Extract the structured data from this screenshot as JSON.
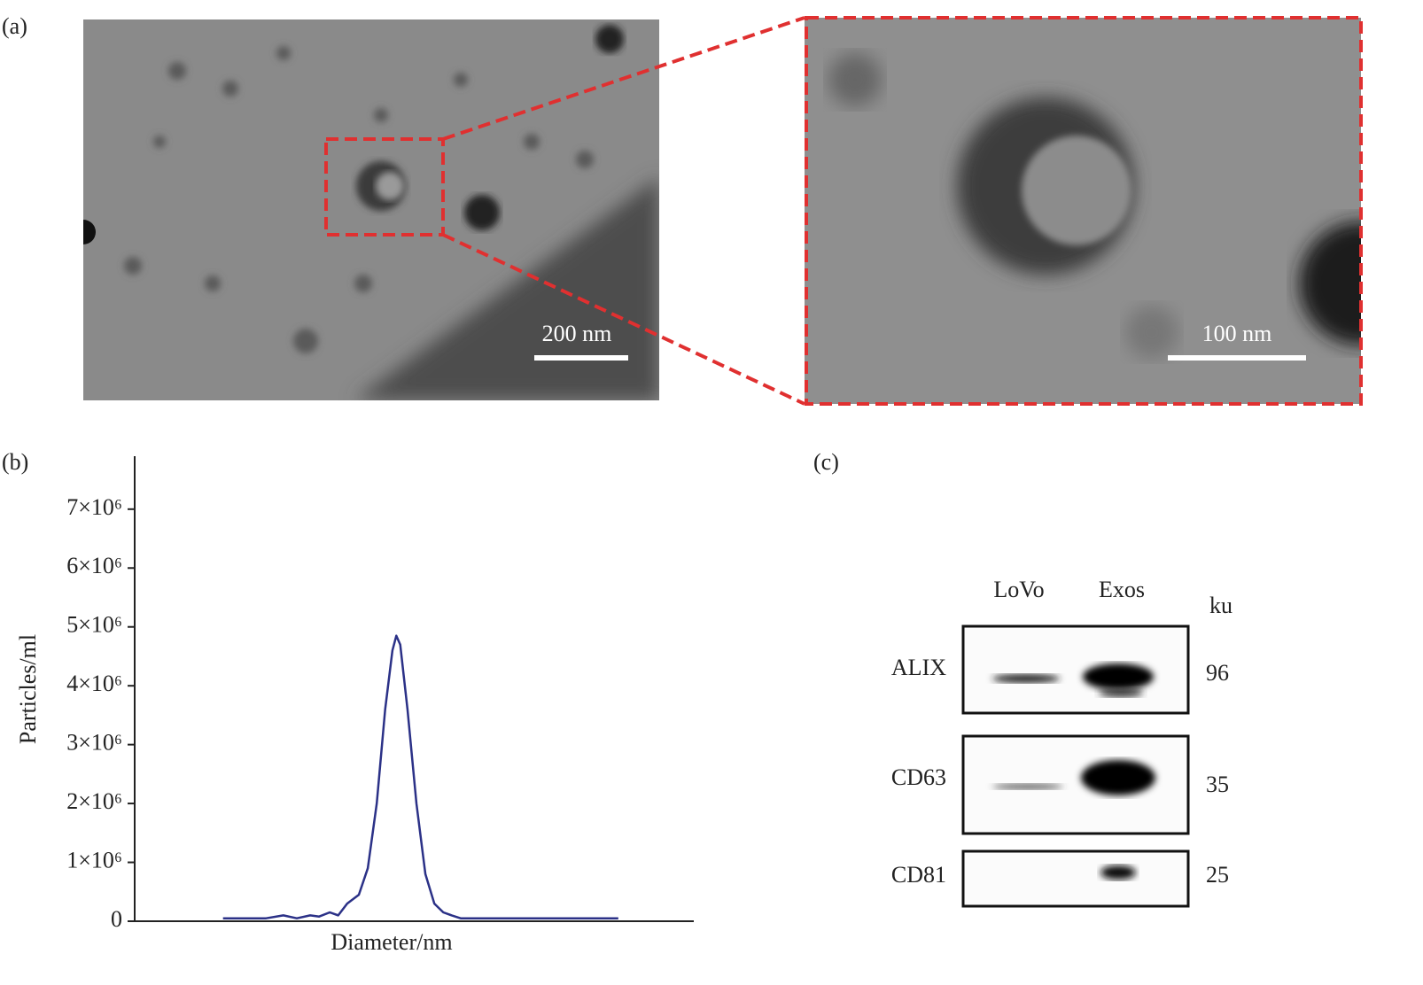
{
  "panel_a": {
    "label": "(a)",
    "scale_bars": [
      "200 nm",
      "100 nm"
    ]
  },
  "chart_data": {
    "type": "line",
    "label": "(b)",
    "x_label": "Diameter/nm",
    "y_label": "Particles/ml",
    "color": "#2b3187",
    "xlim": [
      0,
      1000
    ],
    "ylim": [
      0,
      7900000
    ],
    "yticks": [
      0,
      {
        "value": 1000000,
        "label": "1×10⁶"
      },
      {
        "value": 2000000,
        "label": "2×10⁶"
      },
      {
        "value": 3000000,
        "label": "3×10⁶"
      },
      {
        "value": 4000000,
        "label": "4×10⁶"
      },
      {
        "value": 5000000,
        "label": "5×10⁶"
      },
      {
        "value": 6000000,
        "label": "6×10⁶"
      },
      {
        "value": 7000000,
        "label": "7×10⁶"
      }
    ],
    "x": [
      158,
      235,
      266,
      290,
      314,
      330,
      349,
      364,
      380,
      401,
      417,
      433,
      448,
      461,
      468,
      475,
      488,
      504,
      520,
      536,
      552,
      567,
      583,
      599,
      865
    ],
    "values": [
      50000,
      50000,
      100000,
      50000,
      100000,
      80000,
      150000,
      100000,
      300000,
      450000,
      900000,
      2000000,
      3600000,
      4600000,
      4850000,
      4700000,
      3600000,
      2000000,
      800000,
      300000,
      150000,
      100000,
      50000,
      50000,
      50000
    ]
  },
  "panel_c": {
    "label": "(c)",
    "lanes": [
      "LoVo",
      "Exos"
    ],
    "unit": "ku",
    "rows": [
      {
        "protein": "ALIX",
        "size": "96"
      },
      {
        "protein": "CD63",
        "size": "35"
      },
      {
        "protein": "CD81",
        "size": "25"
      }
    ]
  }
}
